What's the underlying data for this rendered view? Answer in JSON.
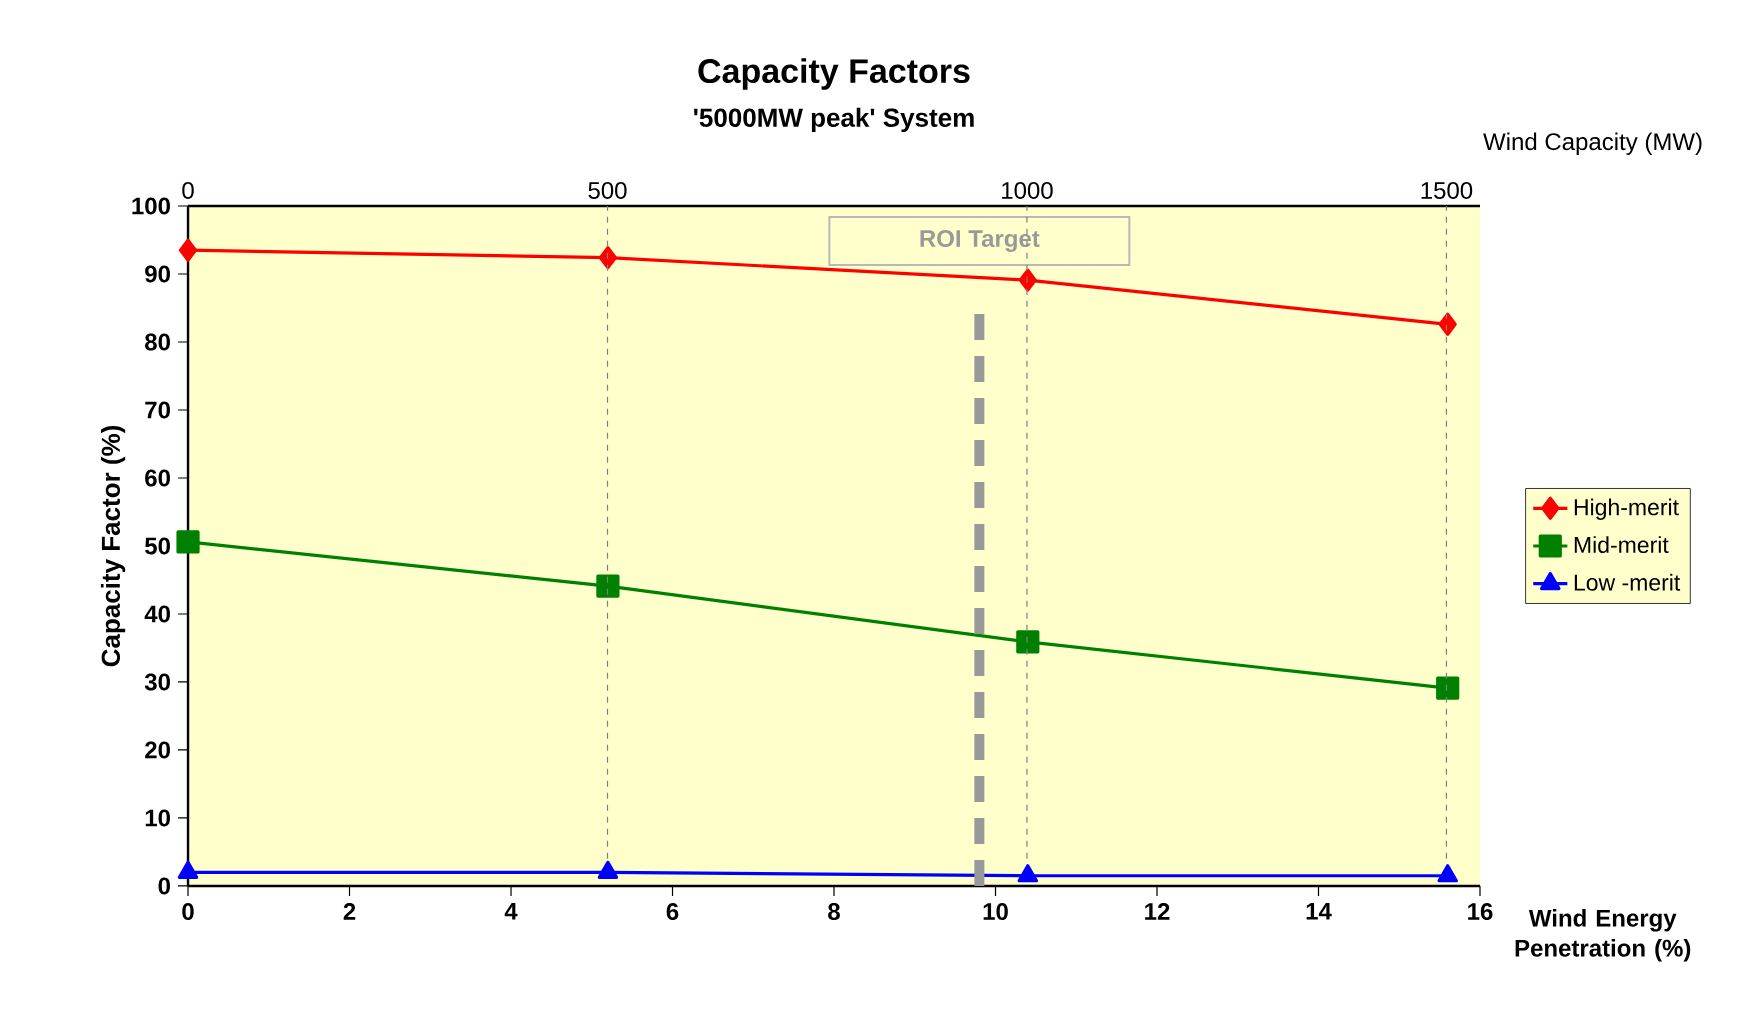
{
  "chart_data": {
    "type": "line",
    "title": "Capacity Factors",
    "subtitle": "'5000MW peak'  System",
    "xlabel": "Wind Energy Penetration (%)",
    "ylabel": "Capacity Factor (%)",
    "x2label": "Wind Capacity (MW)",
    "x": [
      0,
      5.2,
      10.4,
      15.6
    ],
    "series": [
      {
        "name": "High-merit",
        "color": "#ff0000",
        "marker": "diamond",
        "values": [
          93.5,
          92.4,
          89.1,
          82.6
        ]
      },
      {
        "name": "Mid-merit",
        "color": "#008000",
        "marker": "square",
        "values": [
          50.6,
          44.1,
          35.9,
          29.1
        ]
      },
      {
        "name": "Low -merit",
        "color": "#0000ff",
        "marker": "triangle",
        "values": [
          2,
          2,
          1.5,
          1.5
        ]
      }
    ],
    "xlim": [
      0,
      16
    ],
    "xticks": [
      0,
      2,
      4,
      6,
      8,
      10,
      12,
      14,
      16
    ],
    "ylim": [
      0,
      100
    ],
    "yticks": [
      0,
      10,
      20,
      30,
      40,
      50,
      60,
      70,
      80,
      90,
      100
    ],
    "x2lim": [
      0,
      1540
    ],
    "x2ticks": [
      0,
      500,
      1000,
      1500
    ],
    "ref_lines": [
      {
        "axis": "x2",
        "value": 500,
        "color": "#808080",
        "line_style": "dashed"
      },
      {
        "axis": "x2",
        "value": 1000,
        "color": "#808080",
        "line_style": "dashed"
      },
      {
        "axis": "x2",
        "value": 1500,
        "color": "#808080",
        "line_style": "dashed"
      },
      {
        "axis": "x",
        "value": 9.8,
        "label": "ROI Target",
        "color": "#999999",
        "line_style": "dashed"
      }
    ],
    "legend": "right",
    "grid": false,
    "line_style": "solid"
  }
}
